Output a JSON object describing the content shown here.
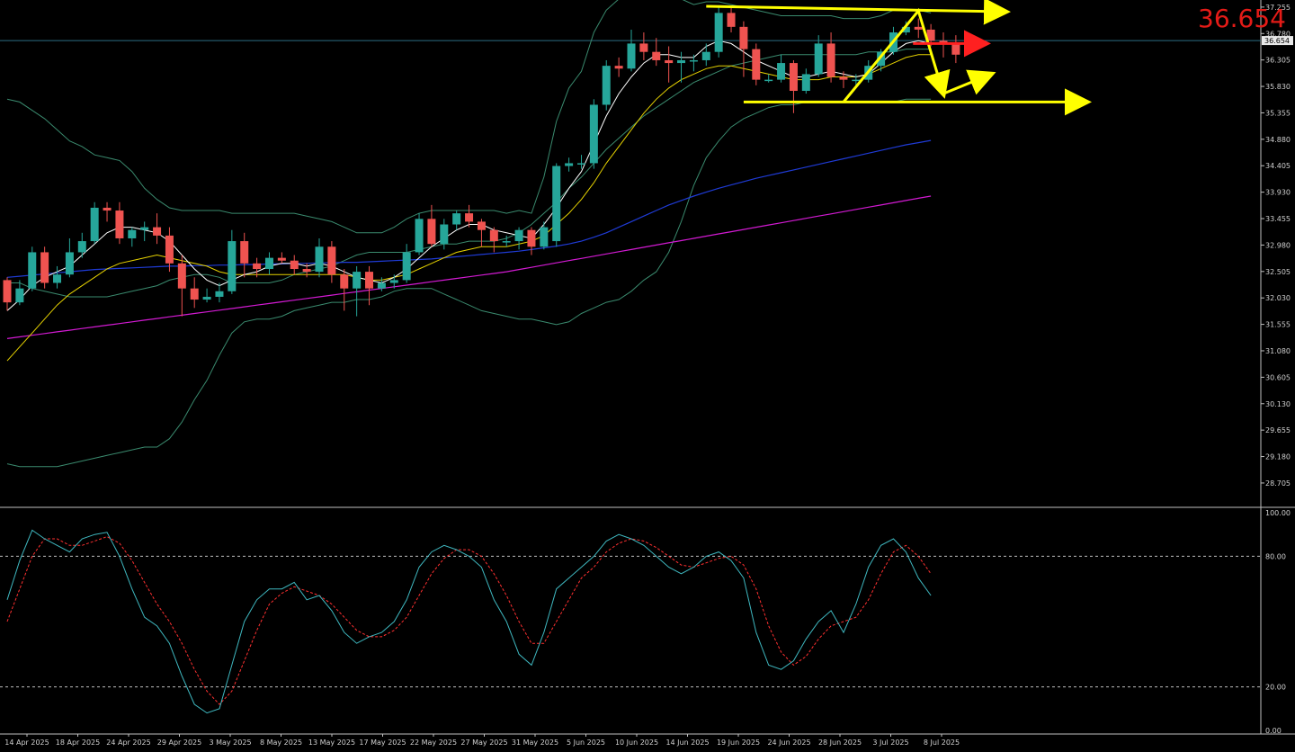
{
  "price_display": "36.654",
  "chart_data": {
    "type": "candlestick",
    "colors": {
      "bull": "#26a69a",
      "bear": "#ef5350",
      "background": "#000000",
      "bb": "#3a8a6e",
      "sma20": "#ffffff",
      "sma50": "#e6d200",
      "ma100": "#1f3bd6",
      "ma200": "#d21ad2",
      "stoch_k": "#3fb8c0",
      "stoch_d": "#ff3030",
      "annotation": "#ffff00",
      "current_marker": "#ff2020"
    },
    "price_axis": {
      "ylim": [
        28.3,
        37.35
      ],
      "ticks": [
        "37.255",
        "36.780",
        "36.305",
        "35.830",
        "35.355",
        "34.880",
        "34.405",
        "33.930",
        "33.455",
        "32.980",
        "32.505",
        "32.030",
        "31.555",
        "31.080",
        "30.605",
        "30.130",
        "29.655",
        "29.180",
        "28.705"
      ],
      "current": "36.654",
      "current_value": 36.654
    },
    "x_labels": [
      "14 Apr 2025",
      "18 Apr 2025",
      "24 Apr 2025",
      "29 Apr 2025",
      "3 May 2025",
      "8 May 2025",
      "13 May 2025",
      "17 May 2025",
      "22 May 2025",
      "27 May 2025",
      "31 May 2025",
      "5 Jun 2025",
      "10 Jun 2025",
      "14 Jun 2025",
      "19 Jun 2025",
      "24 Jun 2025",
      "28 Jun 2025",
      "3 Jul 2025",
      "8 Jul 2025"
    ],
    "candles": [
      [
        32.35,
        31.95,
        32.4,
        31.8
      ],
      [
        31.95,
        32.2,
        32.35,
        31.9
      ],
      [
        32.2,
        32.85,
        32.95,
        32.15
      ],
      [
        32.85,
        32.3,
        32.95,
        32.2
      ],
      [
        32.3,
        32.45,
        32.6,
        32.2
      ],
      [
        32.45,
        32.85,
        33.1,
        32.4
      ],
      [
        32.85,
        33.05,
        33.2,
        32.75
      ],
      [
        33.05,
        33.65,
        33.75,
        33.0
      ],
      [
        33.65,
        33.6,
        33.75,
        33.4
      ],
      [
        33.6,
        33.1,
        33.75,
        33.0
      ],
      [
        33.1,
        33.25,
        33.3,
        32.95
      ],
      [
        33.25,
        33.3,
        33.4,
        33.05
      ],
      [
        33.3,
        33.15,
        33.55,
        33.0
      ],
      [
        33.15,
        32.65,
        33.3,
        32.5
      ],
      [
        32.65,
        32.2,
        32.8,
        31.7
      ],
      [
        32.2,
        32.0,
        32.4,
        31.85
      ],
      [
        32.0,
        32.05,
        32.2,
        31.95
      ],
      [
        32.05,
        32.15,
        32.3,
        31.95
      ],
      [
        32.15,
        33.05,
        33.25,
        32.1
      ],
      [
        33.05,
        32.65,
        33.2,
        32.4
      ],
      [
        32.65,
        32.55,
        32.75,
        32.4
      ],
      [
        32.55,
        32.75,
        32.85,
        32.45
      ],
      [
        32.75,
        32.7,
        32.85,
        32.65
      ],
      [
        32.7,
        32.55,
        32.8,
        32.45
      ],
      [
        32.55,
        32.5,
        32.65,
        32.4
      ],
      [
        32.5,
        32.95,
        33.1,
        32.4
      ],
      [
        32.95,
        32.45,
        33.05,
        32.3
      ],
      [
        32.45,
        32.2,
        32.55,
        31.8
      ],
      [
        32.2,
        32.5,
        32.6,
        31.7
      ],
      [
        32.5,
        32.2,
        32.6,
        31.9
      ],
      [
        32.2,
        32.3,
        32.4,
        32.15
      ],
      [
        32.3,
        32.35,
        32.45,
        32.2
      ],
      [
        32.35,
        32.85,
        33.0,
        32.3
      ],
      [
        32.85,
        33.45,
        33.55,
        32.8
      ],
      [
        33.45,
        33.0,
        33.7,
        32.95
      ],
      [
        33.0,
        33.35,
        33.45,
        32.9
      ],
      [
        33.35,
        33.55,
        33.6,
        33.25
      ],
      [
        33.55,
        33.4,
        33.7,
        33.3
      ],
      [
        33.4,
        33.25,
        33.45,
        32.95
      ],
      [
        33.25,
        33.05,
        33.3,
        32.85
      ],
      [
        33.05,
        33.05,
        33.15,
        32.95
      ],
      [
        33.05,
        33.25,
        33.3,
        32.9
      ],
      [
        33.25,
        32.95,
        33.3,
        32.8
      ],
      [
        32.95,
        33.3,
        33.4,
        32.9
      ],
      [
        33.05,
        34.4,
        34.45,
        32.95
      ],
      [
        34.4,
        34.45,
        34.55,
        34.3
      ],
      [
        34.45,
        34.45,
        34.6,
        34.35
      ],
      [
        34.45,
        35.5,
        35.6,
        34.35
      ],
      [
        35.5,
        36.2,
        36.3,
        35.4
      ],
      [
        36.2,
        36.15,
        36.35,
        36.0
      ],
      [
        36.15,
        36.6,
        36.85,
        36.1
      ],
      [
        36.6,
        36.45,
        36.8,
        36.3
      ],
      [
        36.45,
        36.3,
        36.7,
        36.2
      ],
      [
        36.3,
        36.25,
        36.55,
        35.9
      ],
      [
        36.25,
        36.3,
        36.45,
        35.9
      ],
      [
        36.3,
        36.3,
        36.4,
        36.1
      ],
      [
        36.3,
        36.45,
        36.6,
        36.2
      ],
      [
        36.45,
        37.15,
        37.25,
        36.35
      ],
      [
        37.15,
        36.9,
        37.25,
        36.8
      ],
      [
        36.9,
        36.5,
        37.0,
        36.0
      ],
      [
        36.5,
        35.95,
        36.6,
        35.85
      ],
      [
        35.95,
        35.95,
        36.05,
        35.9
      ],
      [
        35.95,
        36.25,
        36.4,
        35.9
      ],
      [
        36.25,
        35.75,
        36.3,
        35.35
      ],
      [
        35.75,
        36.05,
        36.15,
        35.7
      ],
      [
        36.05,
        36.6,
        36.75,
        36.0
      ],
      [
        36.6,
        36.0,
        36.8,
        35.9
      ],
      [
        36.0,
        35.95,
        36.1,
        35.8
      ],
      [
        35.95,
        35.95,
        36.05,
        35.85
      ],
      [
        35.95,
        36.2,
        36.3,
        35.9
      ],
      [
        36.2,
        36.45,
        36.5,
        36.1
      ],
      [
        36.45,
        36.8,
        36.9,
        36.4
      ],
      [
        36.8,
        36.9,
        37.0,
        36.75
      ],
      [
        36.9,
        36.85,
        37.05,
        36.7
      ],
      [
        36.85,
        36.65,
        36.95,
        36.55
      ],
      [
        36.65,
        36.6,
        36.8,
        36.35
      ],
      [
        36.6,
        36.4,
        36.75,
        36.25
      ]
    ],
    "indicators": {
      "bb_upper": [
        35.6,
        35.55,
        35.4,
        35.25,
        35.05,
        34.85,
        34.75,
        34.6,
        34.55,
        34.5,
        34.3,
        34.0,
        33.8,
        33.65,
        33.6,
        33.6,
        33.6,
        33.6,
        33.55,
        33.55,
        33.55,
        33.55,
        33.55,
        33.55,
        33.5,
        33.45,
        33.4,
        33.3,
        33.2,
        33.2,
        33.2,
        33.3,
        33.45,
        33.55,
        33.6,
        33.6,
        33.6,
        33.6,
        33.6,
        33.6,
        33.55,
        33.6,
        33.55,
        34.2,
        35.2,
        35.8,
        36.1,
        36.8,
        37.2,
        37.4,
        37.4,
        37.4,
        37.4,
        37.4,
        37.4,
        37.3,
        37.35,
        37.35,
        37.3,
        37.25,
        37.2,
        37.15,
        37.1,
        37.1,
        37.1,
        37.1,
        37.1,
        37.05,
        37.05,
        37.05,
        37.1,
        37.2,
        37.2,
        37.2,
        37.15
      ],
      "bb_lower": [
        29.05,
        29.0,
        29.0,
        29.0,
        29.0,
        29.05,
        29.1,
        29.15,
        29.2,
        29.25,
        29.3,
        29.35,
        29.35,
        29.5,
        29.8,
        30.2,
        30.55,
        31.0,
        31.4,
        31.6,
        31.65,
        31.65,
        31.7,
        31.8,
        31.85,
        31.9,
        31.95,
        31.95,
        32.0,
        32.0,
        32.05,
        32.15,
        32.2,
        32.2,
        32.2,
        32.1,
        32.0,
        31.9,
        31.8,
        31.75,
        31.7,
        31.65,
        31.65,
        31.6,
        31.55,
        31.6,
        31.75,
        31.85,
        31.95,
        32.0,
        32.15,
        32.35,
        32.5,
        32.85,
        33.4,
        34.05,
        34.55,
        34.85,
        35.1,
        35.25,
        35.35,
        35.45,
        35.5,
        35.5,
        35.55,
        35.55,
        35.55,
        35.55,
        35.55,
        35.55,
        35.55,
        35.55,
        35.6,
        35.6,
        35.6
      ],
      "bb_mid": [
        32.3,
        32.3,
        32.2,
        32.15,
        32.1,
        32.05,
        32.05,
        32.05,
        32.05,
        32.1,
        32.15,
        32.2,
        32.25,
        32.35,
        32.4,
        32.45,
        32.45,
        32.4,
        32.3,
        32.3,
        32.3,
        32.3,
        32.35,
        32.45,
        32.5,
        32.55,
        32.6,
        32.7,
        32.8,
        32.85,
        32.85,
        32.85,
        32.85,
        32.9,
        32.95,
        33.0,
        33.0,
        33.05,
        33.05,
        33.05,
        33.1,
        33.2,
        33.35,
        33.55,
        33.75,
        34.0,
        34.2,
        34.45,
        34.7,
        34.9,
        35.1,
        35.3,
        35.45,
        35.6,
        35.75,
        35.9,
        36.0,
        36.1,
        36.2,
        36.25,
        36.3,
        36.35,
        36.4,
        36.4,
        36.4,
        36.4,
        36.4,
        36.4,
        36.4,
        36.45,
        36.45,
        36.45,
        36.5,
        36.5,
        36.5
      ],
      "sma_fast": [
        31.8,
        32.0,
        32.25,
        32.4,
        32.5,
        32.6,
        32.8,
        33.0,
        33.2,
        33.3,
        33.3,
        33.25,
        33.2,
        33.05,
        32.8,
        32.55,
        32.35,
        32.25,
        32.35,
        32.45,
        32.5,
        32.6,
        32.65,
        32.65,
        32.6,
        32.65,
        32.6,
        32.5,
        32.4,
        32.35,
        32.3,
        32.4,
        32.55,
        32.75,
        32.95,
        33.1,
        33.25,
        33.35,
        33.35,
        33.25,
        33.2,
        33.15,
        33.1,
        33.35,
        33.65,
        34.0,
        34.3,
        34.8,
        35.3,
        35.7,
        36.0,
        36.25,
        36.4,
        36.4,
        36.35,
        36.35,
        36.55,
        36.65,
        36.6,
        36.45,
        36.3,
        36.2,
        36.1,
        36.0,
        36.0,
        36.05,
        36.1,
        36.05,
        36.0,
        36.05,
        36.25,
        36.45,
        36.6,
        36.65,
        36.6
      ],
      "sma_slow": [
        30.9,
        31.15,
        31.4,
        31.65,
        31.9,
        32.1,
        32.25,
        32.4,
        32.55,
        32.65,
        32.7,
        32.75,
        32.8,
        32.75,
        32.7,
        32.65,
        32.6,
        32.5,
        32.45,
        32.45,
        32.45,
        32.45,
        32.45,
        32.45,
        32.45,
        32.45,
        32.45,
        32.45,
        32.4,
        32.35,
        32.35,
        32.4,
        32.45,
        32.55,
        32.65,
        32.75,
        32.85,
        32.9,
        32.95,
        32.95,
        32.95,
        33.0,
        33.05,
        33.15,
        33.35,
        33.55,
        33.8,
        34.1,
        34.45,
        34.75,
        35.05,
        35.35,
        35.6,
        35.8,
        35.95,
        36.05,
        36.15,
        36.2,
        36.2,
        36.15,
        36.1,
        36.05,
        36.0,
        35.95,
        35.95,
        35.95,
        36.0,
        36.0,
        36.0,
        36.05,
        36.15,
        36.25,
        36.35,
        36.4,
        36.4
      ],
      "ma_100": [
        32.4,
        32.42,
        32.44,
        32.46,
        32.48,
        32.5,
        32.52,
        32.54,
        32.55,
        32.56,
        32.57,
        32.58,
        32.59,
        32.6,
        32.6,
        32.61,
        32.61,
        32.62,
        32.62,
        32.63,
        32.63,
        32.64,
        32.64,
        32.65,
        32.65,
        32.66,
        32.66,
        32.67,
        32.67,
        32.68,
        32.69,
        32.7,
        32.71,
        32.72,
        32.73,
        32.75,
        32.77,
        32.79,
        32.81,
        32.83,
        32.85,
        32.87,
        32.9,
        32.93,
        32.96,
        33.0,
        33.05,
        33.12,
        33.2,
        33.3,
        33.4,
        33.5,
        33.6,
        33.7,
        33.78,
        33.86,
        33.93,
        34.0,
        34.06,
        34.12,
        34.18,
        34.23,
        34.28,
        34.33,
        34.38,
        34.43,
        34.48,
        34.53,
        34.58,
        34.63,
        34.68,
        34.73,
        34.78,
        34.82,
        34.86
      ],
      "ma_200": [
        31.3,
        31.33,
        31.36,
        31.39,
        31.42,
        31.45,
        31.48,
        31.51,
        31.54,
        31.57,
        31.6,
        31.63,
        31.66,
        31.69,
        31.72,
        31.75,
        31.78,
        31.81,
        31.84,
        31.87,
        31.9,
        31.93,
        31.96,
        31.99,
        32.02,
        32.05,
        32.08,
        32.11,
        32.14,
        32.17,
        32.2,
        32.23,
        32.26,
        32.29,
        32.32,
        32.35,
        32.38,
        32.41,
        32.44,
        32.47,
        32.5,
        32.54,
        32.58,
        32.62,
        32.66,
        32.7,
        32.74,
        32.78,
        32.82,
        32.86,
        32.9,
        32.94,
        32.98,
        33.02,
        33.06,
        33.1,
        33.14,
        33.18,
        33.22,
        33.26,
        33.3,
        33.34,
        33.38,
        33.42,
        33.46,
        33.5,
        33.54,
        33.58,
        33.62,
        33.66,
        33.7,
        33.74,
        33.78,
        33.82,
        33.86
      ]
    },
    "stochastic": {
      "ylim": [
        0,
        100
      ],
      "ticks": [
        "100.00",
        "80.00",
        "20.00",
        "0.00"
      ],
      "levels": [
        80,
        20
      ],
      "k": [
        60,
        78,
        92,
        88,
        85,
        82,
        88,
        90,
        91,
        80,
        65,
        52,
        48,
        40,
        25,
        12,
        8,
        10,
        30,
        50,
        60,
        65,
        65,
        68,
        60,
        62,
        55,
        45,
        40,
        43,
        45,
        50,
        60,
        75,
        82,
        85,
        83,
        80,
        75,
        60,
        50,
        35,
        30,
        45,
        65,
        70,
        75,
        80,
        87,
        90,
        88,
        85,
        80,
        75,
        72,
        75,
        80,
        82,
        78,
        70,
        45,
        30,
        28,
        32,
        42,
        50,
        55,
        45,
        58,
        75,
        85,
        88,
        82,
        70,
        62
      ],
      "d": [
        50,
        65,
        80,
        88,
        88,
        85,
        85,
        87,
        89,
        86,
        78,
        68,
        58,
        50,
        40,
        28,
        18,
        12,
        18,
        32,
        46,
        58,
        63,
        66,
        64,
        62,
        58,
        52,
        46,
        43,
        43,
        46,
        52,
        62,
        72,
        79,
        83,
        83,
        80,
        72,
        62,
        50,
        40,
        40,
        50,
        60,
        70,
        75,
        82,
        86,
        88,
        87,
        84,
        80,
        76,
        75,
        77,
        79,
        80,
        76,
        65,
        48,
        36,
        30,
        34,
        42,
        48,
        50,
        52,
        60,
        72,
        82,
        85,
        80,
        72
      ]
    },
    "annotations": {
      "resistance_level": 37.22,
      "support_level": 35.55,
      "target_up": 36.6
    }
  }
}
